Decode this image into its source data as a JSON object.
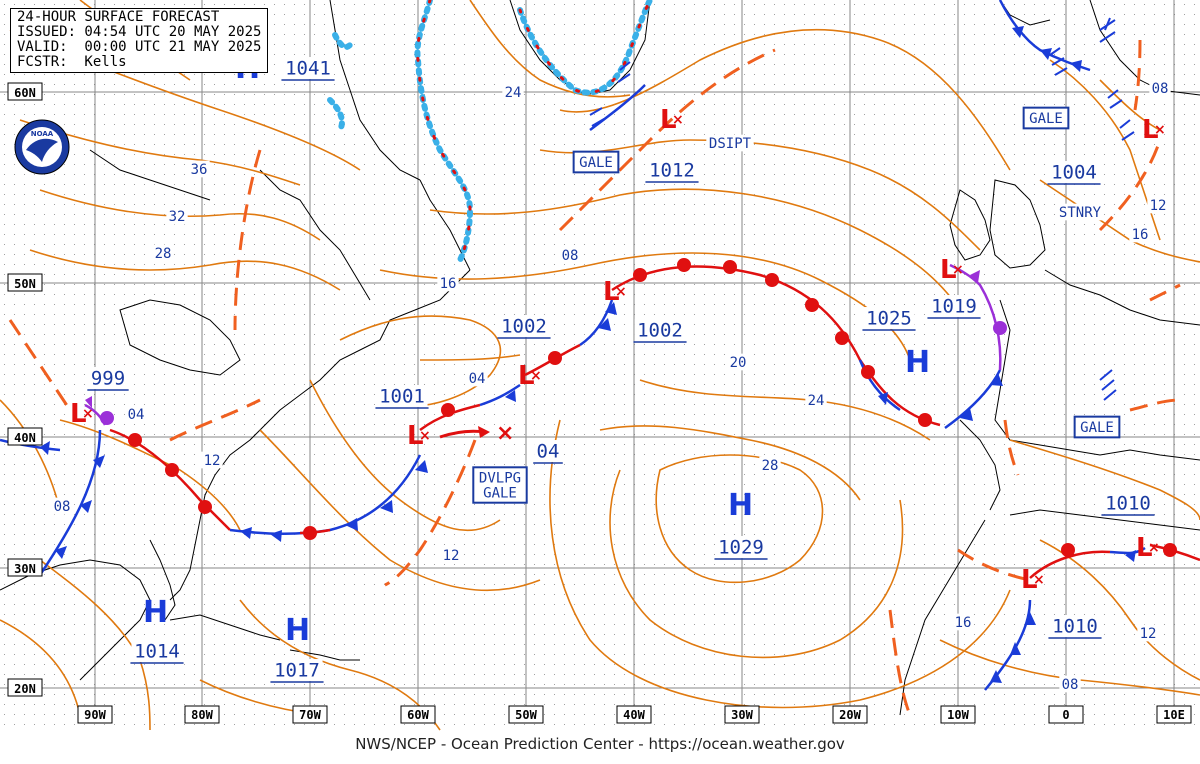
{
  "header": {
    "title": "24-HOUR SURFACE FORECAST",
    "issued": "ISSUED: 04:54 UTC 20 MAY 2025",
    "valid": "VALID:  00:00 UTC 21 MAY 2025",
    "forecaster": "FCSTR:  Kells"
  },
  "footer": "NWS/NCEP - Ocean Prediction Center - https://ocean.weather.gov",
  "logo_text": "NOAA",
  "lat_labels": [
    "60N",
    "50N",
    "40N",
    "30N",
    "20N"
  ],
  "lon_labels": [
    "90W",
    "80W",
    "70W",
    "60W",
    "50W",
    "40W",
    "30W",
    "20W",
    "10W",
    "0",
    "10E"
  ],
  "pressure_centers": [
    {
      "type": "H",
      "value": "1041"
    },
    {
      "type": "L",
      "value": "1012"
    },
    {
      "type": "L",
      "value": "1004"
    },
    {
      "type": "L",
      "value": "1002"
    },
    {
      "type": "L",
      "value": "1002"
    },
    {
      "type": "L",
      "value": "1001"
    },
    {
      "type": "L",
      "value": "999"
    },
    {
      "type": "L",
      "value": "1019"
    },
    {
      "type": "H",
      "value": "1025"
    },
    {
      "type": "H",
      "value": "1029"
    },
    {
      "type": "H",
      "value": "1014"
    },
    {
      "type": "H",
      "value": "1017"
    },
    {
      "type": "L",
      "value": "1010"
    },
    {
      "type": "L",
      "value": "1010"
    },
    {
      "type": "L",
      "value": ""
    },
    {
      "type": "L",
      "value": ""
    }
  ],
  "isobar_labels": [
    "24",
    "36",
    "32",
    "28",
    "16",
    "08",
    "04",
    "04",
    "12",
    "08",
    "12",
    "20",
    "24",
    "28",
    "08",
    "12",
    "16",
    "16",
    "12",
    "08"
  ],
  "warnings": [
    "GALE",
    "GALE",
    "GALE",
    "DVLPG\nGALE"
  ],
  "annotations": [
    "DSIPT",
    "STNRY"
  ],
  "colors": {
    "isobar": "#e07a10",
    "trough": "#f06020",
    "warm_front": "#e01010",
    "cold_front": "#1a3cd8",
    "occluded": "#9b30d8",
    "ice": "#3ab0e8",
    "label_text": "#1a3aa0",
    "grid": "#555555",
    "coast": "#000000"
  }
}
